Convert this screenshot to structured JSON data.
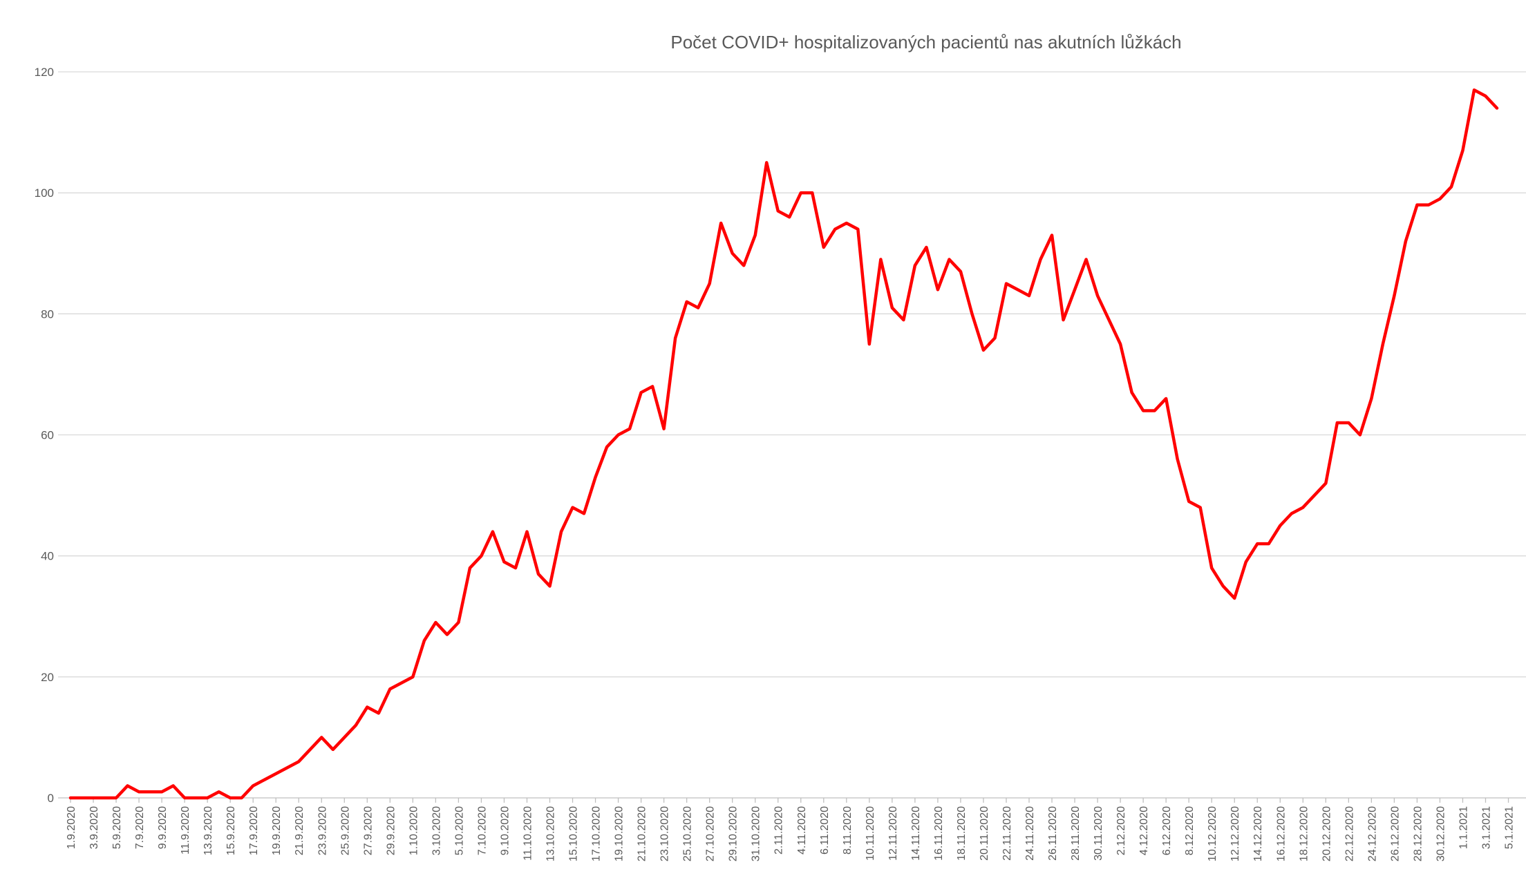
{
  "chart_data": {
    "type": "line",
    "title": "Počet COVID+ hospitalizovaných pacientů nas akutních lůžkách",
    "xlabel": "",
    "ylabel": "",
    "ylim": [
      0,
      120
    ],
    "yticks": [
      0,
      20,
      40,
      60,
      80,
      100,
      120
    ],
    "grid": true,
    "legend": "none",
    "x_tick_labels": [
      "1.9.2020",
      "3.9.2020",
      "5.9.2020",
      "7.9.2020",
      "9.9.2020",
      "11.9.2020",
      "13.9.2020",
      "15.9.2020",
      "17.9.2020",
      "19.9.2020",
      "21.9.2020",
      "23.9.2020",
      "25.9.2020",
      "27.9.2020",
      "29.9.2020",
      "1.10.2020",
      "3.10.2020",
      "5.10.2020",
      "7.10.2020",
      "9.10.2020",
      "11.10.2020",
      "13.10.2020",
      "15.10.2020",
      "17.10.2020",
      "19.10.2020",
      "21.10.2020",
      "23.10.2020",
      "25.10.2020",
      "27.10.2020",
      "29.10.2020",
      "31.10.2020",
      "2.11.2020",
      "4.11.2020",
      "6.11.2020",
      "8.11.2020",
      "10.11.2020",
      "12.11.2020",
      "14.11.2020",
      "16.11.2020",
      "18.11.2020",
      "20.11.2020",
      "22.11.2020",
      "24.11.2020",
      "26.11.2020",
      "28.11.2020",
      "30.11.2020",
      "2.12.2020",
      "4.12.2020",
      "6.12.2020",
      "8.12.2020",
      "10.12.2020",
      "12.12.2020",
      "14.12.2020",
      "16.12.2020",
      "18.12.2020",
      "20.12.2020",
      "22.12.2020",
      "24.12.2020",
      "26.12.2020",
      "28.12.2020",
      "30.12.2020",
      "1.1.2021",
      "3.1.2021",
      "5.1.2021"
    ],
    "series": [
      {
        "color": "#ff0000",
        "values": [
          0,
          0,
          0,
          0,
          0,
          2,
          1,
          1,
          1,
          2,
          0,
          0,
          0,
          1,
          0,
          0,
          2,
          3,
          4,
          5,
          6,
          8,
          10,
          8,
          10,
          12,
          15,
          14,
          18,
          19,
          20,
          26,
          29,
          27,
          29,
          38,
          40,
          44,
          39,
          38,
          44,
          37,
          35,
          44,
          48,
          47,
          53,
          58,
          60,
          61,
          67,
          68,
          61,
          76,
          82,
          81,
          85,
          95,
          90,
          88,
          93,
          105,
          97,
          96,
          100,
          100,
          91,
          94,
          95,
          94,
          75,
          89,
          81,
          79,
          88,
          91,
          84,
          89,
          87,
          80,
          74,
          76,
          85,
          84,
          83,
          89,
          93,
          79,
          84,
          89,
          83,
          79,
          75,
          67,
          64,
          64,
          66,
          56,
          49,
          48,
          38,
          35,
          33,
          39,
          42,
          42,
          45,
          47,
          48,
          50,
          52,
          62,
          62,
          60,
          66,
          75,
          83,
          92,
          98,
          98,
          99,
          101,
          107,
          117,
          116,
          114
        ]
      }
    ]
  }
}
